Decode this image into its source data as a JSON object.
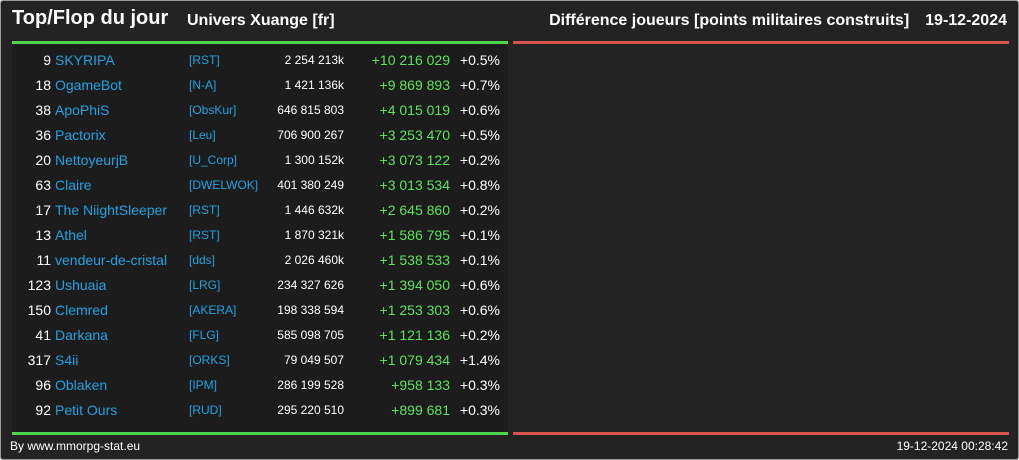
{
  "header": {
    "title": "Top/Flop du jour",
    "universe": "Univers Xuange [fr]",
    "category": "Différence joueurs [points militaires construits]",
    "date": "19-12-2024"
  },
  "colors": {
    "gain_line": "#4cd64c",
    "loss_line": "#d9534f",
    "gain_text": "#5be35b",
    "link": "#1fa3e0"
  },
  "rows": [
    {
      "rank": "9",
      "name": "SKYRIPA",
      "tag": "[RST]",
      "points": "2 254 213k",
      "diff": "+10 216 029",
      "pct": "+0.5%"
    },
    {
      "rank": "18",
      "name": "OgameBot",
      "tag": "[N-A]",
      "points": "1 421 136k",
      "diff": "+9 869 893",
      "pct": "+0.7%"
    },
    {
      "rank": "38",
      "name": "ApoPhiS",
      "tag": "[ObsKur]",
      "points": "646 815 803",
      "diff": "+4 015 019",
      "pct": "+0.6%"
    },
    {
      "rank": "36",
      "name": "Pactorix",
      "tag": "[Leu]",
      "points": "706 900 267",
      "diff": "+3 253 470",
      "pct": "+0.5%"
    },
    {
      "rank": "20",
      "name": "NettoyeurjB",
      "tag": "[U_Corp]",
      "points": "1 300 152k",
      "diff": "+3 073 122",
      "pct": "+0.2%"
    },
    {
      "rank": "63",
      "name": "Claire",
      "tag": "[DWELWOK]",
      "points": "401 380 249",
      "diff": "+3 013 534",
      "pct": "+0.8%"
    },
    {
      "rank": "17",
      "name": "The NiightSleeper",
      "tag": "[RST]",
      "points": "1 446 632k",
      "diff": "+2 645 860",
      "pct": "+0.2%"
    },
    {
      "rank": "13",
      "name": "Athel",
      "tag": "[RST]",
      "points": "1 870 321k",
      "diff": "+1 586 795",
      "pct": "+0.1%"
    },
    {
      "rank": "11",
      "name": "vendeur-de-cristal",
      "tag": "[dds]",
      "points": "2 026 460k",
      "diff": "+1 538 533",
      "pct": "+0.1%"
    },
    {
      "rank": "123",
      "name": "Ushuaia",
      "tag": "[LRG]",
      "points": "234 327 626",
      "diff": "+1 394 050",
      "pct": "+0.6%"
    },
    {
      "rank": "150",
      "name": "Clemred",
      "tag": "[AKERA]",
      "points": "198 338 594",
      "diff": "+1 253 303",
      "pct": "+0.6%"
    },
    {
      "rank": "41",
      "name": "Darkana",
      "tag": "[FLG]",
      "points": "585 098 705",
      "diff": "+1 121 136",
      "pct": "+0.2%"
    },
    {
      "rank": "317",
      "name": "S4ii",
      "tag": "[ORKS]",
      "points": "79 049 507",
      "diff": "+1 079 434",
      "pct": "+1.4%"
    },
    {
      "rank": "96",
      "name": "Oblaken",
      "tag": "[IPM]",
      "points": "286 199 528",
      "diff": "+958 133",
      "pct": "+0.3%"
    },
    {
      "rank": "92",
      "name": "Petit Ours",
      "tag": "[RUD]",
      "points": "295 220 510",
      "diff": "+899 681",
      "pct": "+0.3%"
    }
  ],
  "footer": {
    "credit": "By www.mmorpg-stat.eu",
    "timestamp": "19-12-2024 00:28:42"
  }
}
